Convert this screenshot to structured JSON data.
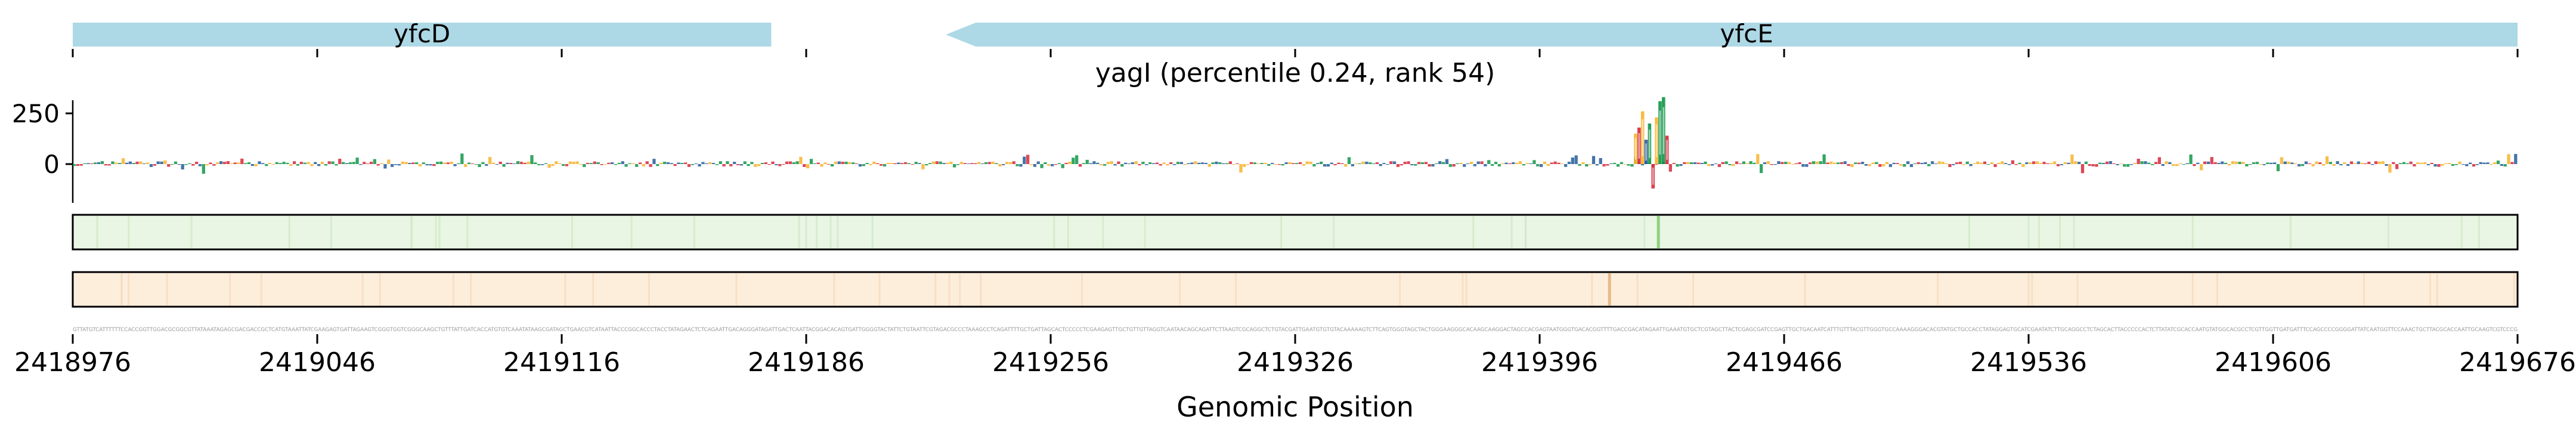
{
  "chart_data": {
    "type": "sequence-logo",
    "title": "yagI (percentile 0.24, rank 54)",
    "xlabel": "Genomic Position",
    "ylabel": "",
    "xlim": [
      2418976,
      2419676
    ],
    "ylim": [
      -150,
      330
    ],
    "x_ticks": [
      2418976,
      2419046,
      2419116,
      2419186,
      2419256,
      2419326,
      2419396,
      2419466,
      2419536,
      2419606,
      2419676
    ],
    "x_tick_labels": [
      "2418976",
      "2419046",
      "2419116",
      "2419186",
      "2419256",
      "2419326",
      "2419396",
      "2419466",
      "2419536",
      "2419606",
      "2419676"
    ],
    "y_ticks": [
      0,
      250
    ],
    "y_tick_labels": [
      "0",
      "250"
    ],
    "genes": [
      {
        "name": "yfcD",
        "start": 2418976,
        "end": 2419176,
        "strand": "+"
      },
      {
        "name": "yfcE",
        "start": 2419226,
        "end": 2419676,
        "strand": "-"
      }
    ],
    "gene_color": "#add8e6",
    "base_colors": {
      "A": "#109648",
      "C": "#255c99",
      "G": "#f7b32b",
      "T": "#d62839"
    },
    "logo_peaks": [
      {
        "position": 2419423,
        "value": 150,
        "base": "G"
      },
      {
        "position": 2419424,
        "value": 180,
        "base": "T"
      },
      {
        "position": 2419425,
        "value": 260,
        "base": "G"
      },
      {
        "position": 2419426,
        "value": 120,
        "base": "C"
      },
      {
        "position": 2419427,
        "value": 200,
        "base": "A"
      },
      {
        "position": 2419428,
        "value": -120,
        "base": "T"
      },
      {
        "position": 2419429,
        "value": 230,
        "base": "G"
      },
      {
        "position": 2419430,
        "value": 310,
        "base": "A"
      },
      {
        "position": 2419431,
        "value": 330,
        "base": "A"
      },
      {
        "position": 2419432,
        "value": 140,
        "base": "T"
      }
    ],
    "tracks": [
      {
        "name": "track-green",
        "color": "#e9f6e4",
        "highlight_position": 2419430
      },
      {
        "name": "track-orange",
        "color": "#fdeedc",
        "highlight_position": 2419416
      }
    ]
  }
}
